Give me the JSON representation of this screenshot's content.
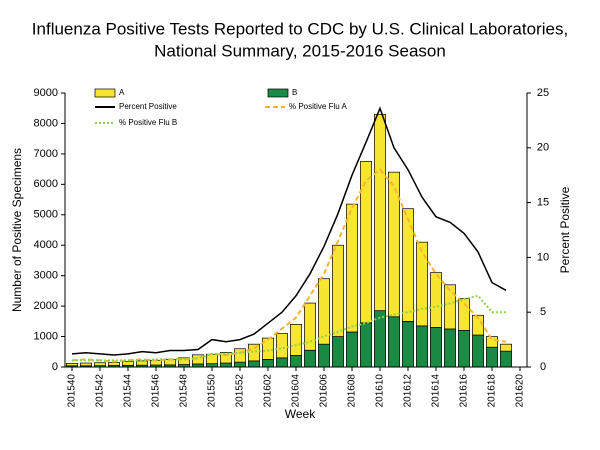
{
  "chart_data": {
    "type": "bar",
    "title": [
      "Influenza Positive Tests Reported to CDC by U.S. Clinical Laboratories,",
      "National Summary, 2015-2016 Season"
    ],
    "x_label": "Week",
    "y_label": "Number of Positive Specimens",
    "y2_label": "Percent Positive",
    "categories": [
      "201540",
      null,
      "201542",
      null,
      "201544",
      null,
      "201546",
      null,
      "201548",
      null,
      "201550",
      null,
      "201552",
      null,
      "201602",
      null,
      "201604",
      null,
      "201606",
      null,
      "201608",
      null,
      "201610",
      null,
      "201612",
      null,
      "201614",
      null,
      "201616",
      null,
      "201618",
      null,
      "201620"
    ],
    "ylim": [
      0,
      9000
    ],
    "yticks": [
      0,
      1000,
      2000,
      3000,
      4000,
      5000,
      6000,
      7000,
      8000,
      9000
    ],
    "y2lim": [
      0,
      25
    ],
    "y2ticks": [
      0,
      5,
      10,
      15,
      20,
      25
    ],
    "series": [
      {
        "name": "B",
        "type": "bar",
        "color": "#1a8a44",
        "values": [
          40,
          40,
          45,
          50,
          55,
          60,
          65,
          70,
          80,
          100,
          110,
          130,
          160,
          200,
          250,
          300,
          380,
          550,
          750,
          1000,
          1150,
          1450,
          1850,
          1650,
          1500,
          1350,
          1300,
          1250,
          1200,
          1050,
          650,
          520,
          null
        ]
      },
      {
        "name": "A",
        "type": "bar",
        "color": "#f7e530",
        "values": [
          80,
          90,
          95,
          100,
          125,
          140,
          155,
          180,
          220,
          300,
          310,
          350,
          440,
          550,
          700,
          800,
          1020,
          1550,
          2150,
          3000,
          4200,
          5300,
          6450,
          4750,
          3700,
          2750,
          1800,
          1450,
          1050,
          650,
          350,
          230,
          null
        ]
      },
      {
        "name": "Percent Positive",
        "type": "line",
        "axis": "y2",
        "color": "#000000",
        "dash": "none",
        "values": [
          1.2,
          1.3,
          1.2,
          1.1,
          1.2,
          1.4,
          1.3,
          1.5,
          1.5,
          1.6,
          2.5,
          2.3,
          2.5,
          3,
          4,
          5,
          6.5,
          8.5,
          11,
          14,
          17.5,
          20.5,
          23.6,
          20,
          18,
          15.5,
          13.7,
          13.2,
          12.2,
          10.5,
          7.7,
          7,
          null
        ]
      },
      {
        "name": "% Positive Flu A",
        "type": "line",
        "axis": "y2",
        "color": "#f5b335",
        "dash": "5 3",
        "values": [
          0.6,
          0.7,
          0.6,
          0.5,
          0.6,
          0.7,
          0.6,
          0.7,
          0.7,
          0.8,
          1.2,
          1.1,
          1.3,
          1.7,
          2.5,
          3.5,
          4.5,
          6.5,
          8.5,
          11.5,
          14.5,
          17,
          18,
          16.5,
          13.5,
          10.5,
          8.5,
          7,
          5.8,
          4.5,
          2.5,
          2.3,
          null
        ]
      },
      {
        "name": "% Positive Flu B",
        "type": "line",
        "axis": "y2",
        "color": "#92d050",
        "dash": "2 2",
        "values": [
          0.6,
          0.6,
          0.6,
          0.6,
          0.6,
          0.6,
          0.7,
          0.7,
          0.7,
          0.8,
          1.2,
          1.2,
          1.3,
          1.4,
          1.5,
          1.7,
          2,
          2.3,
          2.8,
          3.2,
          3.7,
          4,
          4.5,
          4.8,
          5,
          5.3,
          5.5,
          5.8,
          6.2,
          6.5,
          5,
          5,
          null
        ]
      }
    ]
  }
}
